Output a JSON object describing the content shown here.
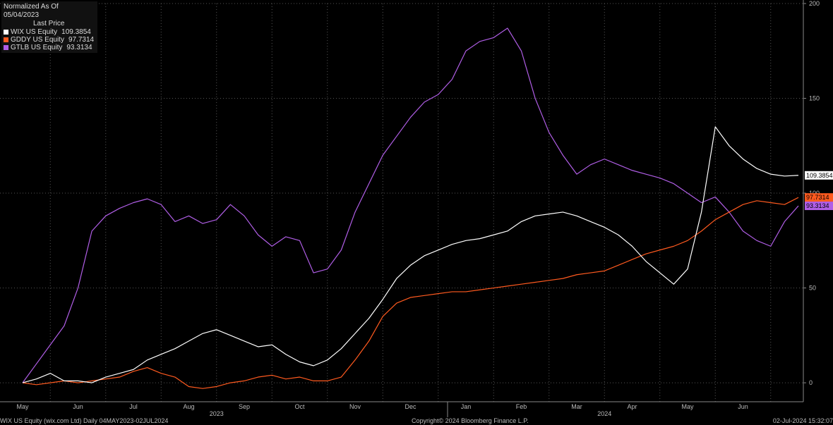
{
  "legend": {
    "header": "Normalized As Of 05/04/2023",
    "subheader": "Last Price"
  },
  "footer": {
    "left": "WIX US Equity (wix.com Ltd)  Daily 04MAY2023-02JUL2024",
    "center": "Copyright© 2024 Bloomberg Finance L.P.",
    "right": "02-Jul-2024 15:32:07"
  },
  "chart_data": {
    "type": "line",
    "grid": true,
    "legend_position": "top-left",
    "ylim": [
      -10,
      200
    ],
    "yticks": [
      0,
      50,
      100,
      150,
      200
    ],
    "x_months": [
      "May",
      "Jun",
      "Jul",
      "Aug",
      "Sep",
      "Oct",
      "Nov",
      "Dec",
      "Jan",
      "Feb",
      "Mar",
      "Apr",
      "May",
      "Jun"
    ],
    "x_years": [
      {
        "label": "2023",
        "month_index": 3.5
      },
      {
        "label": "2024",
        "month_index": 10.5
      }
    ],
    "x": [
      0.0,
      0.25,
      0.5,
      0.75,
      1.0,
      1.25,
      1.5,
      1.75,
      2.0,
      2.25,
      2.5,
      2.75,
      3.0,
      3.25,
      3.5,
      3.75,
      4.0,
      4.25,
      4.5,
      4.75,
      5.0,
      5.25,
      5.5,
      5.75,
      6.0,
      6.25,
      6.5,
      6.75,
      7.0,
      7.25,
      7.5,
      7.75,
      8.0,
      8.25,
      8.5,
      8.75,
      9.0,
      9.25,
      9.5,
      9.75,
      10.0,
      10.25,
      10.5,
      10.75,
      11.0,
      11.25,
      11.5,
      11.75,
      12.0,
      12.25,
      12.5,
      12.75,
      13.0,
      13.25,
      13.5,
      13.75,
      14.0
    ],
    "series": [
      {
        "name": "WIX US Equity",
        "last": "109.3854",
        "color": "#ffffff",
        "values": [
          0,
          2,
          5,
          1,
          1,
          0,
          3,
          5,
          7,
          12,
          15,
          18,
          22,
          26,
          28,
          25,
          22,
          19,
          20,
          15,
          11,
          9,
          12,
          18,
          26,
          34,
          44,
          55,
          62,
          67,
          70,
          73,
          75,
          76,
          78,
          80,
          85,
          88,
          89,
          90,
          88,
          85,
          82,
          78,
          72,
          64,
          58,
          52,
          60,
          90,
          135,
          125,
          118,
          113,
          110,
          109,
          109.39
        ]
      },
      {
        "name": "GDDY US Equity",
        "last": "97.7314",
        "color": "#ff5a1f",
        "values": [
          0,
          -1,
          0,
          1,
          0,
          1,
          2,
          3,
          6,
          8,
          5,
          3,
          -2,
          -3,
          -2,
          0,
          1,
          3,
          4,
          2,
          3,
          1,
          1,
          3,
          12,
          22,
          35,
          42,
          45,
          46,
          47,
          48,
          48,
          49,
          50,
          51,
          52,
          53,
          54,
          55,
          57,
          58,
          59,
          62,
          65,
          68,
          70,
          72,
          75,
          80,
          86,
          90,
          94,
          96,
          95,
          94,
          97.73
        ]
      },
      {
        "name": "GTLB US Equity",
        "last": "93.3134",
        "color": "#b05ee6",
        "values": [
          0,
          10,
          20,
          30,
          50,
          80,
          88,
          92,
          95,
          97,
          94,
          85,
          88,
          84,
          86,
          94,
          88,
          78,
          72,
          77,
          75,
          58,
          60,
          70,
          90,
          105,
          120,
          130,
          140,
          148,
          152,
          160,
          175,
          180,
          182,
          187,
          175,
          150,
          132,
          120,
          110,
          115,
          118,
          115,
          112,
          110,
          108,
          105,
          100,
          95,
          98,
          90,
          80,
          75,
          72,
          85,
          93.31
        ]
      }
    ]
  }
}
